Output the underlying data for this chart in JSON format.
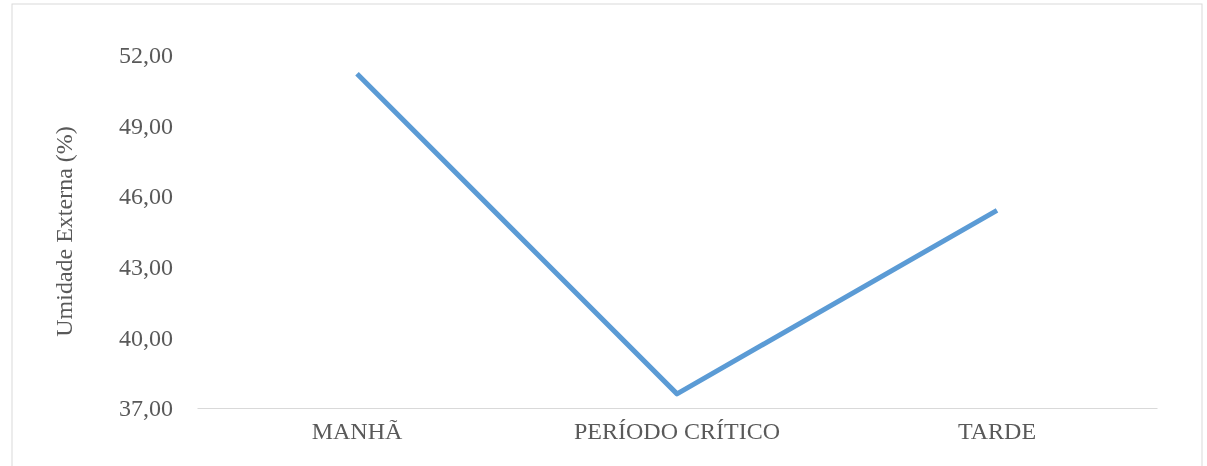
{
  "chart_data": {
    "type": "line",
    "ylabel": "Umidade Externa (%)",
    "categories": [
      "MANHÃ",
      "PERÍODO CRÍTICO",
      "TARDE"
    ],
    "series": [
      {
        "color": "#5b9bd5",
        "values": [
          51.2,
          37.6,
          45.4
        ]
      }
    ],
    "ylim": [
      37,
      52
    ],
    "yticks": [
      {
        "value": 37,
        "label": "37,00"
      },
      {
        "value": 40,
        "label": "40,00"
      },
      {
        "value": 43,
        "label": "43,00"
      },
      {
        "value": 46,
        "label": "46,00"
      },
      {
        "value": 49,
        "label": "49,00"
      },
      {
        "value": 52,
        "label": "52,00"
      }
    ],
    "marker": "none",
    "line_style": "solid"
  }
}
